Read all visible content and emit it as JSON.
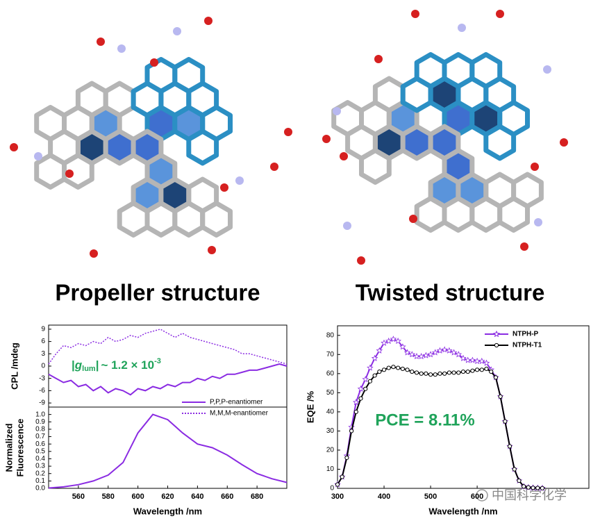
{
  "structure_labels": [
    "Propeller structure",
    "Twisted structure"
  ],
  "watermark": "中国科学化学",
  "chart_data": [
    {
      "type": "line",
      "ylabel": "CPL /mdeg",
      "annotation_parts": [
        "|",
        "g",
        "lum",
        "|",
        "~ 1.2 × 10",
        "-3"
      ],
      "xlim": [
        540,
        700
      ],
      "ylim": [
        -10,
        10
      ],
      "yticks": [
        -9,
        -6,
        -3,
        0,
        3,
        6,
        9
      ],
      "x": [
        540,
        545,
        550,
        555,
        560,
        565,
        570,
        575,
        580,
        585,
        590,
        595,
        600,
        605,
        610,
        615,
        620,
        625,
        630,
        635,
        640,
        645,
        650,
        655,
        660,
        665,
        670,
        675,
        680,
        685,
        690,
        695,
        700
      ],
      "series": [
        {
          "name": "P,P,P-enantiomer",
          "color": "#8a2be2",
          "style": "solid",
          "values": [
            -2,
            -3,
            -4,
            -3.5,
            -5,
            -4.5,
            -6,
            -5,
            -6.5,
            -5.5,
            -6,
            -7,
            -5.5,
            -6,
            -5,
            -5.5,
            -4.5,
            -5,
            -4,
            -4,
            -3,
            -3.5,
            -2.5,
            -3,
            -2,
            -2,
            -1.5,
            -1,
            -1,
            -0.5,
            0,
            0.5,
            0
          ]
        },
        {
          "name": "M,M,M-enantiomer",
          "color": "#8a2be2",
          "style": "dotted",
          "values": [
            0.5,
            3,
            5,
            4.5,
            5.5,
            5,
            6,
            5.5,
            7,
            6,
            6.5,
            7.5,
            7,
            8,
            8.5,
            9,
            8,
            7,
            8,
            7,
            6.5,
            6,
            5.5,
            5,
            4.5,
            4,
            3,
            3,
            2.5,
            2,
            1.5,
            1,
            0.5
          ]
        }
      ]
    },
    {
      "type": "line",
      "ylabel": [
        "Normalized",
        "Fluorescence"
      ],
      "xlabel": "Wavelength /nm",
      "xlim": [
        540,
        700
      ],
      "xticks": [
        560,
        580,
        600,
        620,
        640,
        660,
        680
      ],
      "ylim": [
        0,
        1.1
      ],
      "yticks": [
        {
          "value": 0,
          "label": "0.0"
        },
        0.1,
        0.2,
        0.3,
        0.4,
        0.5,
        0.6,
        0.7,
        0.8,
        0.9,
        {
          "value": 1,
          "label": "1.0"
        }
      ],
      "x": [
        540,
        550,
        560,
        570,
        580,
        590,
        600,
        610,
        620,
        630,
        640,
        650,
        660,
        670,
        680,
        690,
        700
      ],
      "values": [
        0.005,
        0.02,
        0.05,
        0.1,
        0.18,
        0.35,
        0.75,
        1.0,
        0.93,
        0.75,
        0.6,
        0.55,
        0.45,
        0.32,
        0.2,
        0.13,
        0.08
      ],
      "color": "#8a2be2"
    },
    {
      "type": "line",
      "ylabel": "EQE /%",
      "xlabel": "Wavelength /nm",
      "annotation": "PCE = 8.11%",
      "xlim": [
        300,
        840
      ],
      "xticks": [
        300,
        400,
        500,
        600
      ],
      "ylim": [
        0,
        85
      ],
      "yticks": [
        0,
        10,
        20,
        30,
        40,
        50,
        60,
        70,
        80
      ],
      "legend": "upper right",
      "x": [
        300,
        310,
        320,
        330,
        340,
        350,
        360,
        370,
        380,
        390,
        400,
        410,
        420,
        430,
        440,
        450,
        460,
        470,
        480,
        490,
        500,
        510,
        520,
        530,
        540,
        550,
        560,
        570,
        580,
        590,
        600,
        610,
        620,
        630,
        640,
        650,
        660,
        670,
        680,
        690,
        700,
        710,
        720,
        730,
        740
      ],
      "series": [
        {
          "name": "NTPH-P",
          "color": "#8a2be2",
          "marker": "star",
          "values": [
            2,
            6,
            17,
            32,
            45,
            52,
            57,
            63,
            68,
            72,
            76,
            77,
            78,
            77,
            74,
            71,
            70,
            69,
            69,
            69.5,
            70,
            71,
            72,
            72.5,
            72,
            71,
            70,
            68,
            67,
            67,
            66.5,
            66.5,
            65.5,
            62,
            58,
            48,
            35,
            22,
            10,
            4,
            1,
            0.5,
            0.3,
            0.2,
            0.1
          ]
        },
        {
          "name": "NTPH-T1",
          "color": "#000000",
          "marker": "circle",
          "values": [
            2,
            6,
            16,
            30,
            40,
            47,
            52,
            56,
            59,
            61,
            62,
            63,
            63.5,
            63,
            62.5,
            62,
            61,
            60.5,
            60,
            60,
            59.5,
            59.5,
            60,
            60,
            60.5,
            60.5,
            60.5,
            61,
            61,
            61.5,
            62,
            62,
            62.5,
            61,
            58,
            48,
            35,
            22,
            10,
            4,
            1,
            0.5,
            0.3,
            0.2,
            0.1
          ]
        }
      ]
    }
  ]
}
